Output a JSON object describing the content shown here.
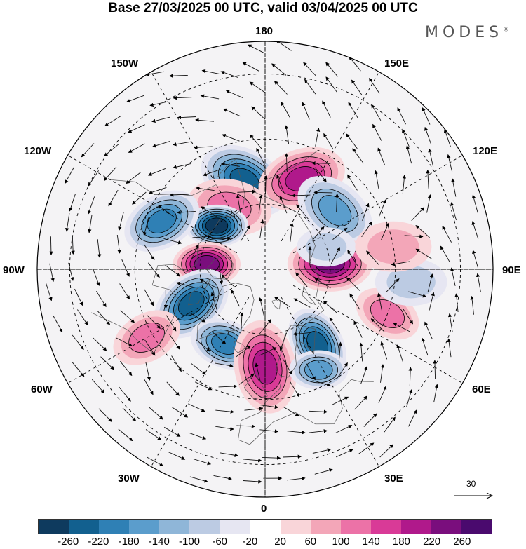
{
  "title": "Base 27/03/2025 00 UTC, valid 03/04/2025 00 UTC",
  "brand": "MODES",
  "brand_mark": "®",
  "lon_labels": {
    "n180": "180",
    "w150": "150W",
    "e150": "150E",
    "w120": "120W",
    "e120": "120E",
    "w90": "90W",
    "e90": "90E",
    "w60": "60W",
    "e60": "60E",
    "w30": "30W",
    "e30": "30E",
    "s0": "0"
  },
  "reference_vector": {
    "value": "30",
    "icon": "arrow-right-icon"
  },
  "colorbar": {
    "ticks": [
      "-260",
      "-220",
      "-180",
      "-140",
      "-100",
      "-60",
      "-20",
      "20",
      "60",
      "100",
      "140",
      "180",
      "220",
      "260"
    ],
    "colors": [
      "#0e3a5e",
      "#12608f",
      "#2f80b5",
      "#5b9dcc",
      "#8fb6d8",
      "#bccbe3",
      "#e6e6f2",
      "#ffffff",
      "#f9d5d9",
      "#f3a6b8",
      "#ec72a7",
      "#d93a97",
      "#b0198b",
      "#7a0e7d",
      "#4a0a6e"
    ]
  },
  "anomalies": [
    {
      "lat": 62,
      "lon": -167,
      "value": -240,
      "size": 38,
      "rot": 30
    },
    {
      "lat": 60,
      "lon": 158,
      "value": 190,
      "size": 36,
      "rot": -20
    },
    {
      "lat": 68,
      "lon": -150,
      "value": 130,
      "size": 34,
      "rot": 10
    },
    {
      "lat": 62,
      "lon": 130,
      "value": -150,
      "size": 34,
      "rot": 40
    },
    {
      "lat": 70,
      "lon": -132,
      "value": -260,
      "size": 24,
      "rot": 0
    },
    {
      "lat": 55,
      "lon": -115,
      "value": -200,
      "size": 32,
      "rot": -30
    },
    {
      "lat": 72,
      "lon": -95,
      "value": 220,
      "size": 26,
      "rot": 0
    },
    {
      "lat": 70,
      "lon": 95,
      "value": 250,
      "size": 34,
      "rot": 0
    },
    {
      "lat": 65,
      "lon": -65,
      "value": -250,
      "size": 34,
      "rot": -40
    },
    {
      "lat": 62,
      "lon": 35,
      "value": -220,
      "size": 30,
      "rot": 60
    },
    {
      "lat": 64,
      "lon": -28,
      "value": -180,
      "size": 28,
      "rot": 20
    },
    {
      "lat": 60,
      "lon": 0,
      "value": 180,
      "size": 38,
      "rot": 80
    },
    {
      "lat": 55,
      "lon": 28,
      "value": -160,
      "size": 22,
      "rot": 0
    },
    {
      "lat": 50,
      "lon": 70,
      "value": 120,
      "size": 26,
      "rot": 30
    },
    {
      "lat": 45,
      "lon": 85,
      "value": -80,
      "size": 28,
      "rot": 0
    },
    {
      "lat": 48,
      "lon": -60,
      "value": 110,
      "size": 28,
      "rot": -30
    },
    {
      "lat": 70,
      "lon": 110,
      "value": -90,
      "size": 22,
      "rot": 0
    },
    {
      "lat": 50,
      "lon": 100,
      "value": 90,
      "size": 30,
      "rot": 0
    }
  ]
}
